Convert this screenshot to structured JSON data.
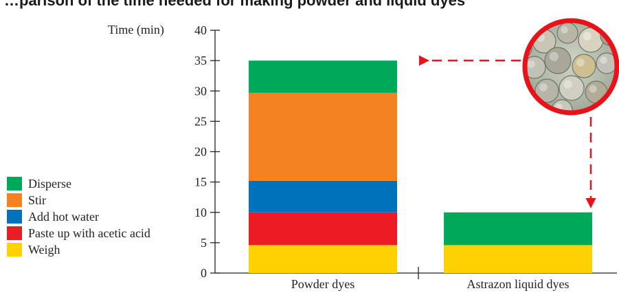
{
  "chart_data": {
    "type": "bar",
    "stacked": true,
    "title": "…parison of the time needed for making powder and liquid dyes",
    "ylabel": "Time (min)",
    "ylim": [
      0,
      40
    ],
    "yticks": [
      0,
      5,
      10,
      15,
      20,
      25,
      30,
      35,
      40
    ],
    "categories": [
      "Powder dyes",
      "Astrazon liquid dyes"
    ],
    "series": [
      {
        "name": "Weigh",
        "color": "#FFD200",
        "values": [
          4.6,
          4.6
        ]
      },
      {
        "name": "Paste up with acetic acid",
        "color": "#ED1C24",
        "values": [
          5.4,
          0
        ]
      },
      {
        "name": "Add hot water",
        "color": "#0072BC",
        "values": [
          5.2,
          0
        ]
      },
      {
        "name": "Stir",
        "color": "#F58220",
        "values": [
          14.5,
          0
        ]
      },
      {
        "name": "Disperse",
        "color": "#00A859",
        "values": [
          5.3,
          5.4
        ]
      }
    ],
    "legend_order": [
      "Disperse",
      "Stir",
      "Add hot water",
      "Paste up with acetic acid",
      "Weigh"
    ],
    "legend_position": "left",
    "annotation": {
      "color": "#E8121B",
      "style": "dashed-arrows",
      "image": "coins-magnifier"
    }
  }
}
